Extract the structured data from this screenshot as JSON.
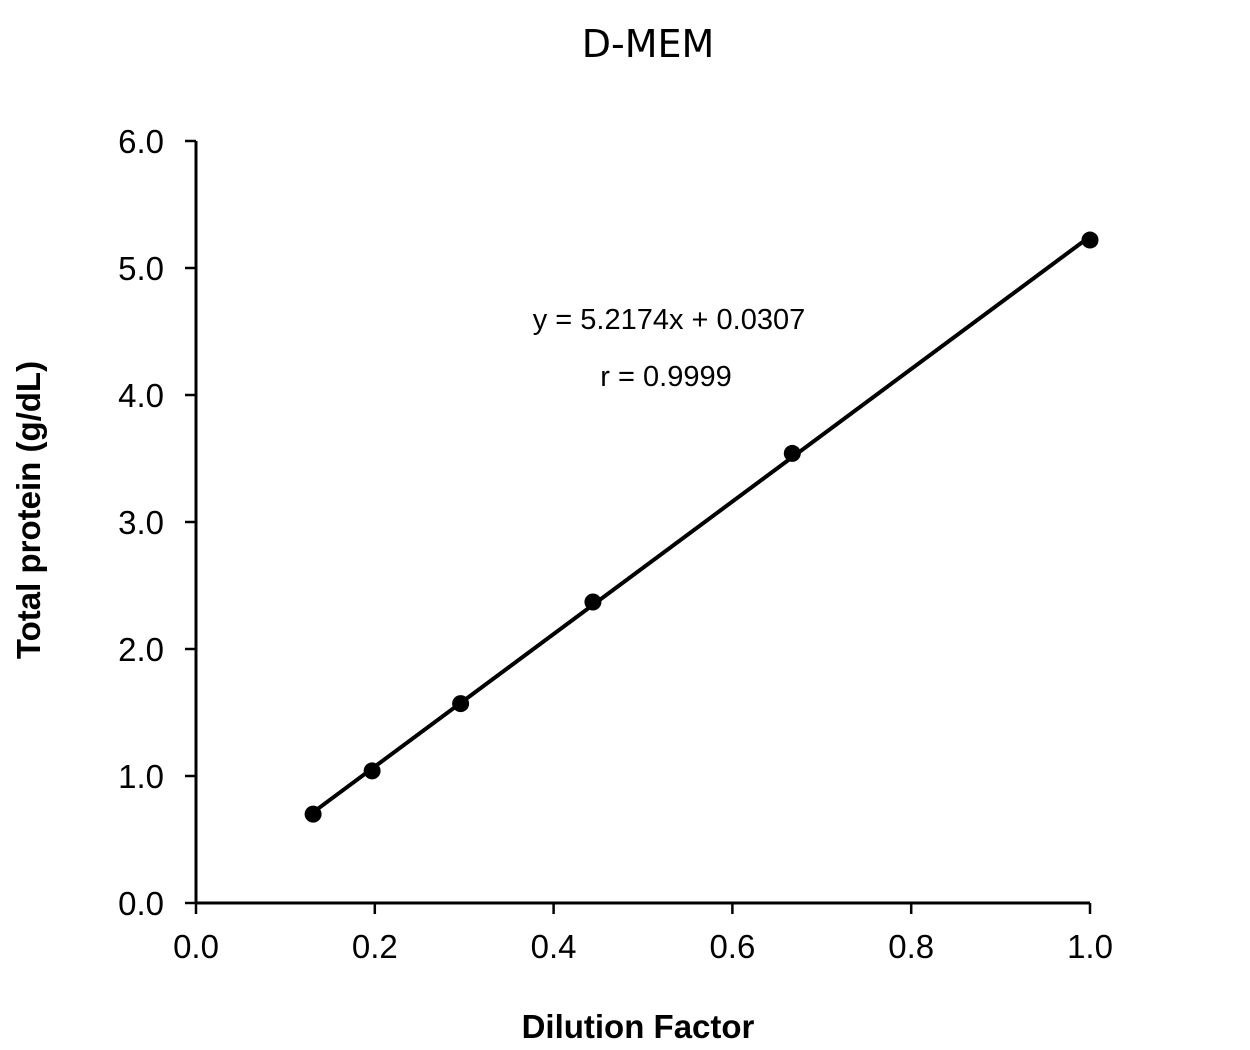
{
  "chart_data": {
    "type": "scatter",
    "title": "D-MEM",
    "xlabel": "Dilution Factor",
    "ylabel": "Total protein (g/dL)",
    "xlim": [
      0.0,
      1.0
    ],
    "ylim": [
      0.0,
      6.0
    ],
    "x_ticks": [
      "0.0",
      "0.2",
      "0.4",
      "0.6",
      "0.8",
      "1.0"
    ],
    "y_ticks": [
      "0.0",
      "1.0",
      "2.0",
      "3.0",
      "4.0",
      "5.0",
      "6.0"
    ],
    "grid": false,
    "legend": "none",
    "series": [
      {
        "x": [
          0.131,
          0.197,
          0.296,
          0.444,
          0.667,
          1.0
        ],
        "y": [
          0.7,
          1.04,
          1.57,
          2.37,
          3.54,
          5.22
        ]
      }
    ],
    "trendline": {
      "slope": 5.2174,
      "intercept": 0.0307,
      "x_range": [
        0.131,
        1.0
      ]
    },
    "annotations": {
      "equation": "y = 5.2174x + 0.0307",
      "r_value": "r = 0.9999"
    },
    "colors": {
      "marker": "#000000",
      "line": "#000000",
      "axis": "#000000"
    }
  }
}
